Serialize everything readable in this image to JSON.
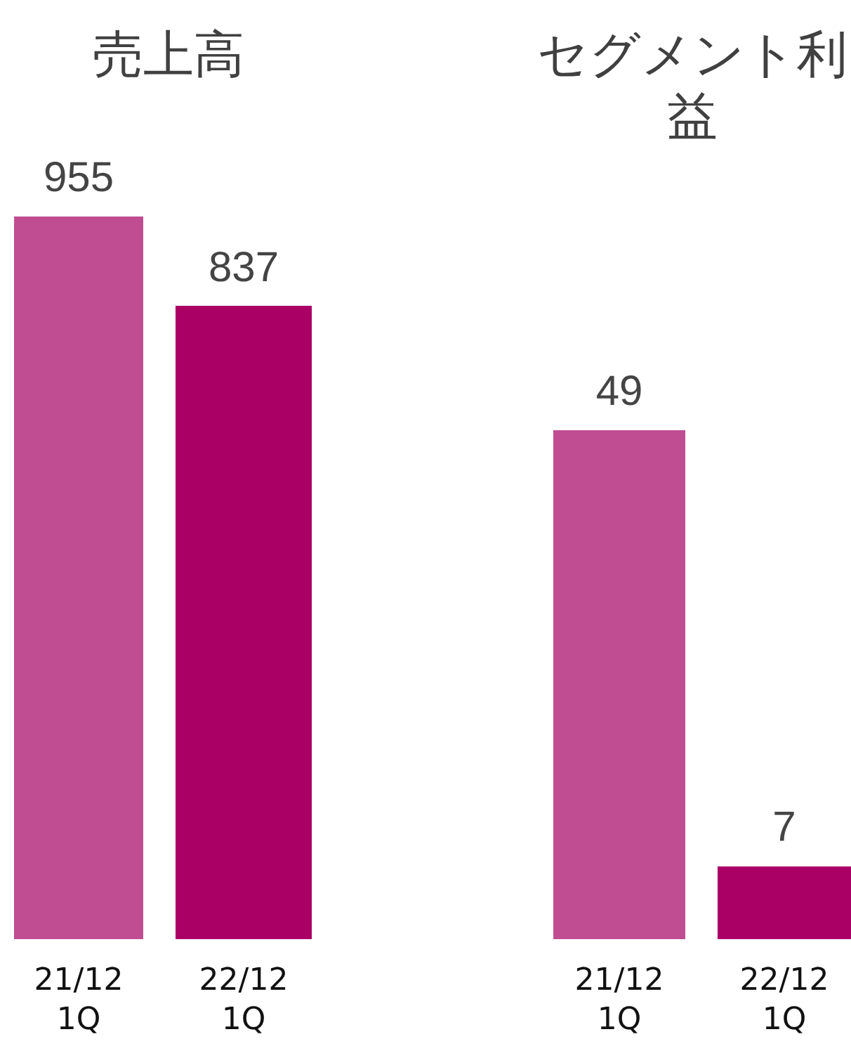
{
  "chart_data": [
    {
      "type": "bar",
      "title": "売上高",
      "categories": [
        "21/12 1Q",
        "22/12 1Q"
      ],
      "values": [
        955,
        837
      ],
      "colors": [
        "#c04d92",
        "#aa0066"
      ],
      "data_labels": true
    },
    {
      "type": "bar",
      "title": "セグメント利益",
      "categories": [
        "21/12 1Q",
        "22/12 1Q"
      ],
      "values": [
        49,
        7
      ],
      "colors": [
        "#c04d92",
        "#aa0066"
      ],
      "data_labels": true
    }
  ]
}
